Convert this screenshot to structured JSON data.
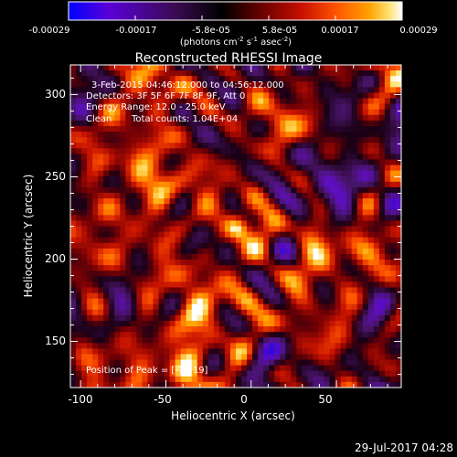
{
  "colorbar": {
    "ticks": [
      "-0.00029",
      "-0.00017",
      "-5.8e-05",
      "5.8e-05",
      "0.00017",
      "0.00029"
    ],
    "units_main": "(photons cm",
    "units_sup1": "-2",
    "units_mid": " s",
    "units_sup2": "-1",
    "units_mid2": " asec",
    "units_sup3": "-2",
    "units_end": ")",
    "colors": [
      "#0000ff",
      "#6f00d0",
      "#3a0d50",
      "#000000",
      "#700000",
      "#c81000",
      "#ff5000",
      "#ff9a00",
      "#ffe060",
      "#ffffff"
    ]
  },
  "plot": {
    "title": "Reconstructed RHESSI Image",
    "xlabel": "Heliocentric X (arcsec)",
    "ylabel": "Heliocentric Y (arcsec)",
    "xticks": [
      "-100",
      "-50",
      "0",
      "50"
    ],
    "yticks": [
      "300",
      "250",
      "200",
      "150"
    ],
    "xlim": [
      -106,
      88
    ],
    "ylim": [
      122,
      318
    ],
    "peak": {
      "x": -7,
      "y": 219
    }
  },
  "annotations": {
    "time_range": "3-Feb-2015 04:46:12.000 to 04:56:12.000",
    "detectors": "Detectors: 3F 5F 6F 7F 8F 9F, Att 0",
    "energy": "Energy Range: 12.0 - 25.0 keV",
    "clean": "Clean",
    "total_counts": "Total counts: 1.04E+04",
    "peak_position": "Position of Peak = [-7,219]"
  },
  "footer": {
    "timestamp": "29-Jul-2017 04:28"
  }
}
